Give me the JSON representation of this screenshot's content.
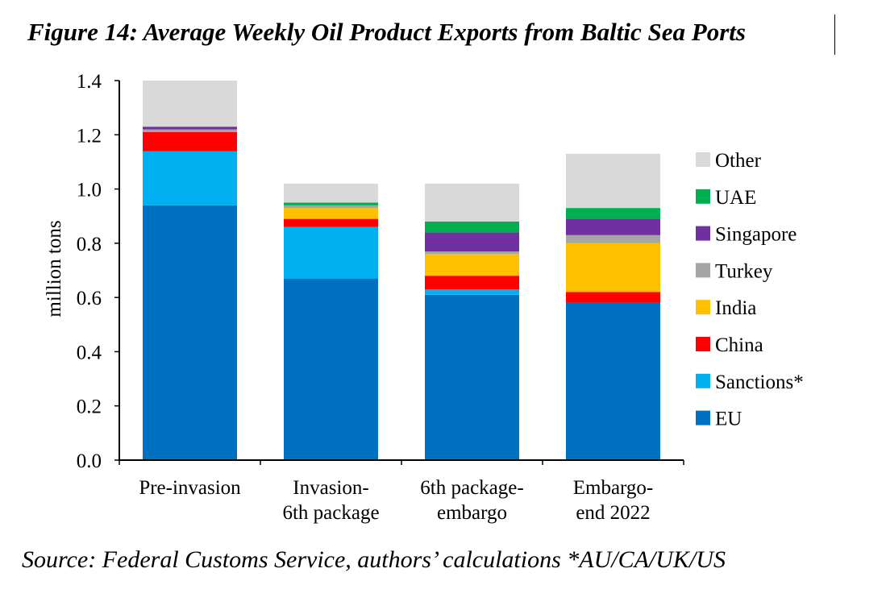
{
  "figure": {
    "title": "Figure 14: Average Weekly Oil Product Exports from Baltic Sea Ports",
    "source": "Source: Federal Customs Service, authors’ calculations *AU/CA/UK/US"
  },
  "chart_data": {
    "type": "bar",
    "stacked": true,
    "categories": [
      [
        "Pre-invasion"
      ],
      [
        "Invasion-",
        "6th package"
      ],
      [
        "6th package-",
        "embargo"
      ],
      [
        "Embargo-",
        "end 2022"
      ]
    ],
    "ylabel": "million tons",
    "xlabel": "",
    "ylim": [
      0,
      1.4
    ],
    "yticks": [
      "0.0",
      "0.2",
      "0.4",
      "0.6",
      "0.8",
      "1.0",
      "1.2",
      "1.4"
    ],
    "grid": false,
    "legend_position": "right",
    "series": [
      {
        "name": "EU",
        "color": "#0070C0",
        "values": [
          0.94,
          0.67,
          0.61,
          0.58
        ]
      },
      {
        "name": "Sanctions*",
        "color": "#00B0F0",
        "values": [
          0.2,
          0.19,
          0.02,
          0.0
        ]
      },
      {
        "name": "China",
        "color": "#FF0000",
        "values": [
          0.07,
          0.03,
          0.05,
          0.04
        ]
      },
      {
        "name": "India",
        "color": "#FFC000",
        "values": [
          0.0,
          0.04,
          0.08,
          0.18
        ]
      },
      {
        "name": "Turkey",
        "color": "#A6A6A6",
        "values": [
          0.01,
          0.01,
          0.01,
          0.03
        ]
      },
      {
        "name": "Singapore",
        "color": "#7030A0",
        "values": [
          0.01,
          0.0,
          0.07,
          0.06
        ]
      },
      {
        "name": "UAE",
        "color": "#00B050",
        "values": [
          0.0,
          0.01,
          0.04,
          0.04
        ]
      },
      {
        "name": "Other",
        "color": "#D9D9D9",
        "values": [
          0.17,
          0.07,
          0.14,
          0.2
        ]
      }
    ]
  }
}
